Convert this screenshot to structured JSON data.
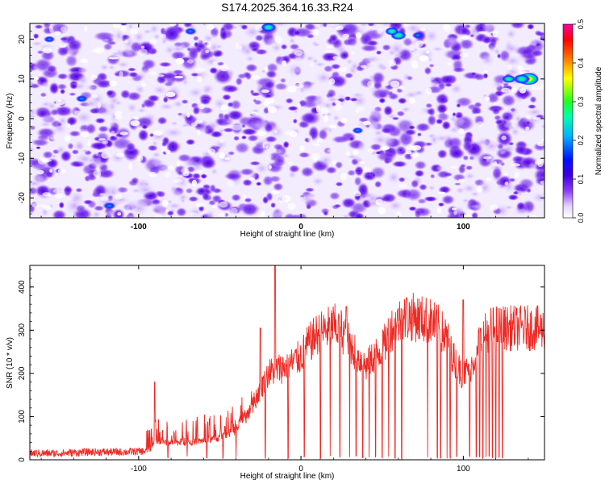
{
  "chart_data": [
    {
      "type": "heatmap",
      "title": "S174.2025.364.16.33.R24",
      "xlabel": "Height of straight line (km)",
      "ylabel": "Frequency (Hz)",
      "xlim": [
        -167,
        150
      ],
      "ylim": [
        -25,
        24
      ],
      "xticks": [
        -100,
        0,
        100
      ],
      "yticks": [
        20,
        10,
        0,
        -10,
        -20
      ],
      "colorbar": {
        "label": "Normalized spectral amplitude",
        "range": [
          0,
          0.5
        ],
        "ticks": [
          "0.0",
          "0.1",
          "0.2",
          "0.3",
          "0.4",
          "0.5"
        ],
        "colors": [
          "#ffffff",
          "#e8d8ff",
          "#7b2ff7",
          "#4b00e0",
          "#0000ff",
          "#00c0ff",
          "#00ff80",
          "#40ff00",
          "#ffff00",
          "#ff8000",
          "#ff0000",
          "#ff00a0"
        ]
      },
      "hotspots": [
        {
          "x": 140,
          "y": 10,
          "amplitude": 0.45
        },
        {
          "x": 136,
          "y": 10,
          "amplitude": 0.3
        },
        {
          "x": 128,
          "y": 10,
          "amplitude": 0.2
        },
        {
          "x": 60,
          "y": 21,
          "amplitude": 0.27
        },
        {
          "x": 56,
          "y": 22,
          "amplitude": 0.2
        },
        {
          "x": -20,
          "y": 23,
          "amplitude": 0.25
        },
        {
          "x": -68,
          "y": 22,
          "amplitude": 0.15
        },
        {
          "x": -135,
          "y": 5,
          "amplitude": 0.15
        },
        {
          "x": -118,
          "y": -22,
          "amplitude": 0.17
        },
        {
          "x": -155,
          "y": 20,
          "amplitude": 0.12
        },
        {
          "x": 35,
          "y": -3,
          "amplitude": 0.12
        },
        {
          "x": 72,
          "y": 21,
          "amplitude": 0.14
        }
      ]
    },
    {
      "type": "line",
      "xlabel": "Height of straight line (km)",
      "ylabel": "SNR (10 * v/v)",
      "xlim": [
        -167,
        150
      ],
      "ylim": [
        0,
        450
      ],
      "xticks": [
        -100,
        0,
        100
      ],
      "yticks": [
        0,
        100,
        200,
        300,
        400
      ],
      "series": [
        {
          "name": "SNR",
          "color": "#ee2a24",
          "x": [
            -167,
            -150,
            -130,
            -110,
            -95,
            -90,
            -85,
            -80,
            -70,
            -60,
            -50,
            -40,
            -35,
            -30,
            -25,
            -20,
            -15,
            -10,
            -5,
            0,
            5,
            10,
            15,
            20,
            25,
            30,
            35,
            40,
            45,
            50,
            55,
            60,
            65,
            70,
            75,
            80,
            85,
            90,
            95,
            100,
            105,
            110,
            115,
            120,
            125,
            130,
            135,
            140,
            145,
            150
          ],
          "y": [
            15,
            15,
            18,
            18,
            20,
            40,
            40,
            40,
            40,
            45,
            50,
            70,
            95,
            125,
            165,
            200,
            210,
            215,
            225,
            240,
            270,
            290,
            300,
            310,
            300,
            270,
            240,
            215,
            240,
            255,
            300,
            320,
            330,
            330,
            325,
            320,
            305,
            280,
            225,
            195,
            220,
            270,
            300,
            305,
            305,
            305,
            305,
            305,
            305,
            300
          ],
          "peaks": [
            {
              "x": -90,
              "y": 180
            },
            {
              "x": -16,
              "y": 450
            },
            {
              "x": -25,
              "y": 305
            },
            {
              "x": 28,
              "y": 355
            },
            {
              "x": 65,
              "y": 375
            },
            {
              "x": 100,
              "y": 370
            }
          ],
          "dropouts_x": [
            -82,
            -70,
            -58,
            -48,
            -40,
            -30,
            -22,
            -8,
            2,
            12,
            18,
            24,
            30,
            34,
            38,
            42,
            46,
            50,
            54,
            58,
            62,
            78,
            84,
            86,
            90,
            92,
            96,
            104,
            108,
            110,
            112,
            114,
            116,
            118,
            120,
            122,
            124
          ]
        }
      ]
    }
  ]
}
